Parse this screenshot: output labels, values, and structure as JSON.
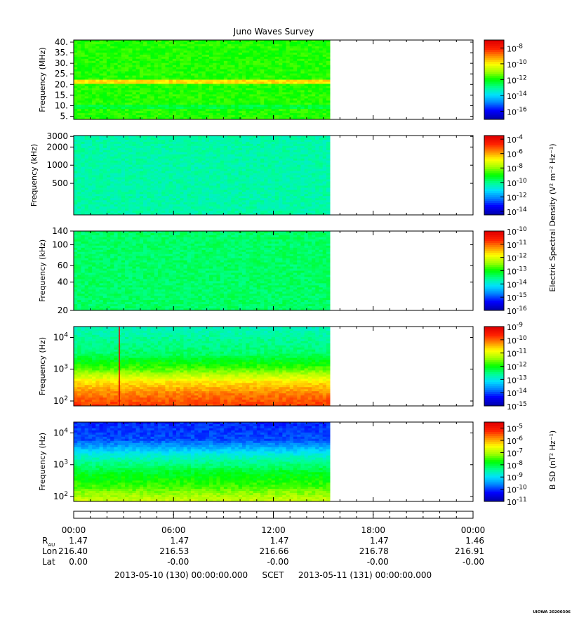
{
  "title": "Juno Waves Survey",
  "footer_stamp": "UIOWA 20200306",
  "scet_label": "SCET",
  "date_start": "2013-05-10 (130) 00:00:00.000",
  "date_end": "2013-05-11 (131) 00:00:00.000",
  "shared_colorbar_label": "Electric Spectral Density (V² m⁻² Hz⁻¹)",
  "colors": {
    "colormap": [
      "#0000b0",
      "#0000ff",
      "#0080ff",
      "#00e0ff",
      "#00ff90",
      "#00ff00",
      "#a0ff00",
      "#ffff00",
      "#ff9000",
      "#ff2000",
      "#e00000"
    ],
    "frame": "#000000",
    "background": "#ffffff"
  },
  "ephemeris": {
    "x_ticks": [
      "00:00",
      "06:00",
      "12:00",
      "18:00",
      "00:00"
    ],
    "rows": [
      {
        "label": "R",
        "label_sub": "AU",
        "values": [
          "1.47",
          "1.47",
          "1.47",
          "1.47",
          "1.46"
        ]
      },
      {
        "label": "Lon",
        "label_sub": "",
        "values": [
          "216.40",
          "216.53",
          "216.66",
          "216.78",
          "216.91"
        ]
      },
      {
        "label": "Lat",
        "label_sub": "",
        "values": [
          "0.00",
          "-0.00",
          "-0.00",
          "-0.00",
          "-0.00"
        ]
      }
    ]
  },
  "chart_data": [
    {
      "type": "heatmap",
      "title": "Juno Waves Survey",
      "ylabel": "Frequency (MHz)",
      "yscale": "linear",
      "ylim": [
        3.5,
        41
      ],
      "y_ticks": [
        "40.",
        "35.",
        "30.",
        "25.",
        "20.",
        "15.",
        "10.",
        "5."
      ],
      "y_tick_values": [
        40,
        35,
        30,
        25,
        20,
        15,
        10,
        5
      ],
      "x_range_hours": [
        0,
        24
      ],
      "data_end_hour": 15.4,
      "base_level": 5.2,
      "bands": [
        {
          "y": 21.5,
          "level": 7.3
        },
        {
          "y": 9,
          "level": 4.6
        }
      ],
      "colorbar": {
        "base": 10,
        "exponents": [
          -8,
          -10,
          -12,
          -14,
          -16
        ],
        "range": [
          -17,
          -7
        ]
      }
    },
    {
      "type": "heatmap",
      "ylabel": "Frequency (kHz)",
      "yscale": "log",
      "ylim": [
        150,
        3100
      ],
      "y_ticks": [
        "3000",
        "2000",
        "1000",
        "500"
      ],
      "y_tick_values": [
        3000,
        2000,
        1000,
        500
      ],
      "x_range_hours": [
        0,
        24
      ],
      "data_end_hour": 15.4,
      "base_level": 3.8,
      "colorbar": {
        "base": 10,
        "exponents": [
          -4,
          -6,
          -8,
          -10,
          -12,
          -14
        ],
        "range": [
          -14.5,
          -3.5
        ]
      }
    },
    {
      "type": "heatmap",
      "ylabel": "Frequency (kHz)",
      "yscale": "log",
      "ylim": [
        20,
        140
      ],
      "y_ticks": [
        "140",
        "100",
        "60",
        "40",
        "20"
      ],
      "y_tick_values": [
        140,
        100,
        60,
        40,
        20
      ],
      "x_range_hours": [
        0,
        24
      ],
      "data_end_hour": 15.4,
      "base_level": 4.3,
      "colorbar": {
        "base": 10,
        "exponents": [
          -10,
          -11,
          -12,
          -13,
          -14,
          -15,
          -16
        ],
        "range": [
          -16,
          -10
        ]
      }
    },
    {
      "type": "heatmap",
      "ylabel": "Frequency (Hz)",
      "yscale": "log",
      "ylim": [
        70,
        22000
      ],
      "y_ticks": [
        "10^4",
        "10^3",
        "10^2"
      ],
      "y_tick_values": [
        10000,
        1000,
        100
      ],
      "x_range_hours": [
        0,
        24
      ],
      "data_end_hour": 15.4,
      "level_profile": [
        [
          70,
          8.8
        ],
        [
          200,
          8.0
        ],
        [
          400,
          7.2
        ],
        [
          1000,
          5.5
        ],
        [
          3000,
          4.3
        ],
        [
          22000,
          3.6
        ]
      ],
      "spikes": [
        {
          "hour": 2.75,
          "level": 9.8
        }
      ],
      "colorbar": {
        "base": 10,
        "exponents": [
          -9,
          -10,
          -11,
          -12,
          -13,
          -14,
          -15
        ],
        "range": [
          -15,
          -9
        ]
      }
    },
    {
      "type": "heatmap",
      "ylabel": "Frequency (Hz)",
      "yscale": "log",
      "ylim": [
        70,
        22000
      ],
      "y_ticks": [
        "10^4",
        "10^3",
        "10^2"
      ],
      "y_tick_values": [
        10000,
        1000,
        100
      ],
      "x_range_hours": [
        0,
        24
      ],
      "data_end_hour": 15.4,
      "level_profile": [
        [
          70,
          6.5
        ],
        [
          200,
          5.4
        ],
        [
          600,
          4.7
        ],
        [
          2000,
          3.4
        ],
        [
          6000,
          1.6
        ],
        [
          22000,
          1.3
        ]
      ],
      "colorbar": {
        "base": 10,
        "exponents": [
          -5,
          -6,
          -7,
          -8,
          -9,
          -10,
          -11
        ],
        "range": [
          -11,
          -4.5
        ],
        "label": "B SD (nT² Hz⁻¹)"
      }
    }
  ]
}
